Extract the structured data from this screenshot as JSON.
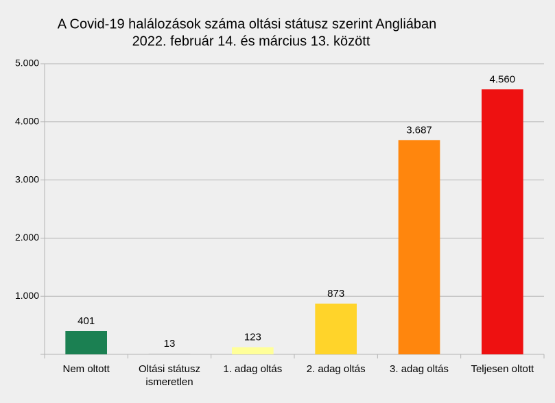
{
  "chart_data": {
    "type": "bar",
    "title": "A Covid-19 halálozások száma oltási státusz szerint Angliában",
    "subtitle": "2022. február 14. és március 13. között",
    "categories": [
      "Nem oltott",
      "Oltási státusz ismeretlen",
      "1. adag oltás",
      "2. adag oltás",
      "3. adag oltás",
      "Teljesen oltott"
    ],
    "values": [
      401,
      13,
      123,
      873,
      3687,
      4560
    ],
    "value_labels": [
      "401",
      "13",
      "123",
      "873",
      "3.687",
      "4.560"
    ],
    "colors": [
      "#1b8052",
      "#c8c8c8",
      "#ffff99",
      "#ffd42a",
      "#ff860d",
      "#ee1111"
    ],
    "ylim": [
      0,
      5000
    ],
    "yticks": [
      {
        "value": 1000,
        "label": "1.000"
      },
      {
        "value": 2000,
        "label": "2.000"
      },
      {
        "value": 3000,
        "label": "3.000"
      },
      {
        "value": 4000,
        "label": "4.000"
      },
      {
        "value": 5000,
        "label": "5.000"
      }
    ],
    "grid": true
  }
}
